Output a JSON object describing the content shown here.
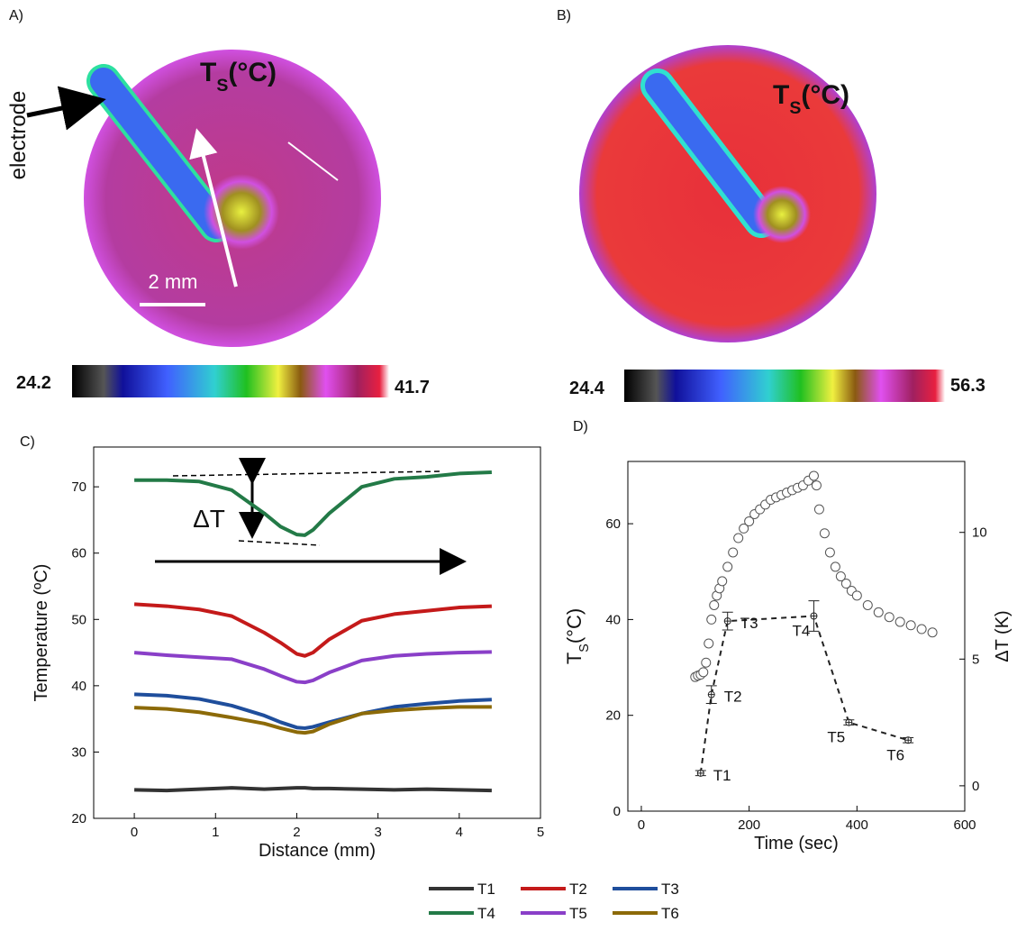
{
  "images": [
    {
      "panel_label": "A)",
      "annotation": "electrode",
      "title": {
        "main": "T",
        "sub": "S",
        "rest": "(°C)"
      },
      "scale_label": "2 mm",
      "colorbar_min": 24.2,
      "colorbar_max": 41.7
    },
    {
      "panel_label": "B)",
      "title": {
        "main": "T",
        "sub": "S",
        "rest": "(°C)"
      },
      "colorbar_min": 24.4,
      "colorbar_max": 56.3
    }
  ],
  "chart_data": [
    {
      "type": "line",
      "panel_label": "C)",
      "x_label": "Distance (mm)",
      "y_label": "Temperature (ºC)",
      "annotation": "ΔT",
      "x": [
        0,
        0.4,
        0.8,
        1.2,
        1.6,
        1.8,
        2.0,
        2.1,
        2.2,
        2.4,
        2.8,
        3.2,
        3.6,
        4.0,
        4.4
      ],
      "xlim": [
        -0.5,
        5
      ],
      "xticks": [
        0,
        1,
        2,
        3,
        4,
        5
      ],
      "ylim": [
        20,
        76
      ],
      "yticks": [
        20,
        30,
        40,
        50,
        60,
        70
      ],
      "series": [
        {
          "name": "T1",
          "color": "#333333",
          "values": [
            24.3,
            24.2,
            24.4,
            24.6,
            24.4,
            24.5,
            24.6,
            24.6,
            24.5,
            24.5,
            24.4,
            24.3,
            24.4,
            24.3,
            24.2
          ]
        },
        {
          "name": "T2",
          "color": "#c41a1a",
          "values": [
            52.3,
            52,
            51.5,
            50.5,
            48,
            46.5,
            44.8,
            44.5,
            45,
            47,
            49.8,
            50.8,
            51.3,
            51.8,
            52
          ]
        },
        {
          "name": "T3",
          "color": "#1f4e9c",
          "values": [
            38.7,
            38.5,
            38,
            37,
            35.5,
            34.5,
            33.7,
            33.6,
            33.8,
            34.5,
            35.8,
            36.8,
            37.3,
            37.7,
            37.9
          ]
        },
        {
          "name": "T4",
          "color": "#237a47",
          "values": [
            71,
            71,
            70.8,
            69.5,
            66,
            64,
            62.8,
            62.7,
            63.5,
            66,
            70,
            71.2,
            71.5,
            72,
            72.2
          ]
        },
        {
          "name": "T5",
          "color": "#8a3fc8",
          "values": [
            45,
            44.6,
            44.3,
            44,
            42.5,
            41.5,
            40.6,
            40.5,
            40.8,
            42,
            43.8,
            44.5,
            44.8,
            45,
            45.1
          ]
        },
        {
          "name": "T6",
          "color": "#8c6a08",
          "values": [
            36.7,
            36.5,
            36,
            35.2,
            34.3,
            33.6,
            33,
            32.9,
            33.1,
            34.2,
            35.8,
            36.3,
            36.6,
            36.8,
            36.8
          ]
        }
      ]
    },
    {
      "type": "scatter",
      "panel_label": "D)",
      "x_label": "Time (sec)",
      "y_label": {
        "main": "T",
        "sub": "S",
        "rest": "(°C)"
      },
      "y2_label": "ΔT (K)",
      "xlim": [
        -25,
        600
      ],
      "xticks": [
        0,
        200,
        400,
        600
      ],
      "ylim": [
        0,
        73
      ],
      "yticks": [
        0,
        20,
        40,
        60
      ],
      "y2lim": [
        -1,
        12.8
      ],
      "y2ticks": [
        0,
        5,
        10
      ],
      "series": [
        {
          "axis": "y",
          "marker": "open-circle",
          "color": "#555555",
          "x": [
            100,
            105,
            110,
            115,
            120,
            125,
            130,
            135,
            140,
            145,
            150,
            160,
            170,
            180,
            190,
            200,
            210,
            220,
            230,
            240,
            250,
            260,
            270,
            280,
            290,
            300,
            310,
            320,
            325,
            330,
            340,
            350,
            360,
            370,
            380,
            390,
            400,
            420,
            440,
            460,
            480,
            500,
            520,
            540
          ],
          "values": [
            28,
            28.3,
            28.5,
            29,
            31,
            35,
            40,
            43,
            45,
            46.5,
            48,
            51,
            54,
            57,
            59,
            60.5,
            62,
            63,
            64,
            65,
            65.5,
            66,
            66.5,
            67,
            67.5,
            68,
            69,
            70,
            68,
            63,
            58,
            54,
            51,
            49,
            47.5,
            46,
            45,
            43,
            41.5,
            40.5,
            39.5,
            38.8,
            38,
            37.3
          ]
        },
        {
          "axis": "y2",
          "marker": "crossed-circle",
          "line_style": "dashed",
          "color": "#222222",
          "x": [
            110,
            130,
            160,
            320,
            385,
            495
          ],
          "values": [
            0.5,
            3.6,
            6.5,
            6.7,
            2.5,
            1.8
          ],
          "errors": [
            0.1,
            0.35,
            0.35,
            0.6,
            0.1,
            0.1
          ],
          "point_labels": [
            "T1",
            "T2",
            "T3",
            "T4",
            "T5",
            "T6"
          ]
        }
      ]
    }
  ]
}
